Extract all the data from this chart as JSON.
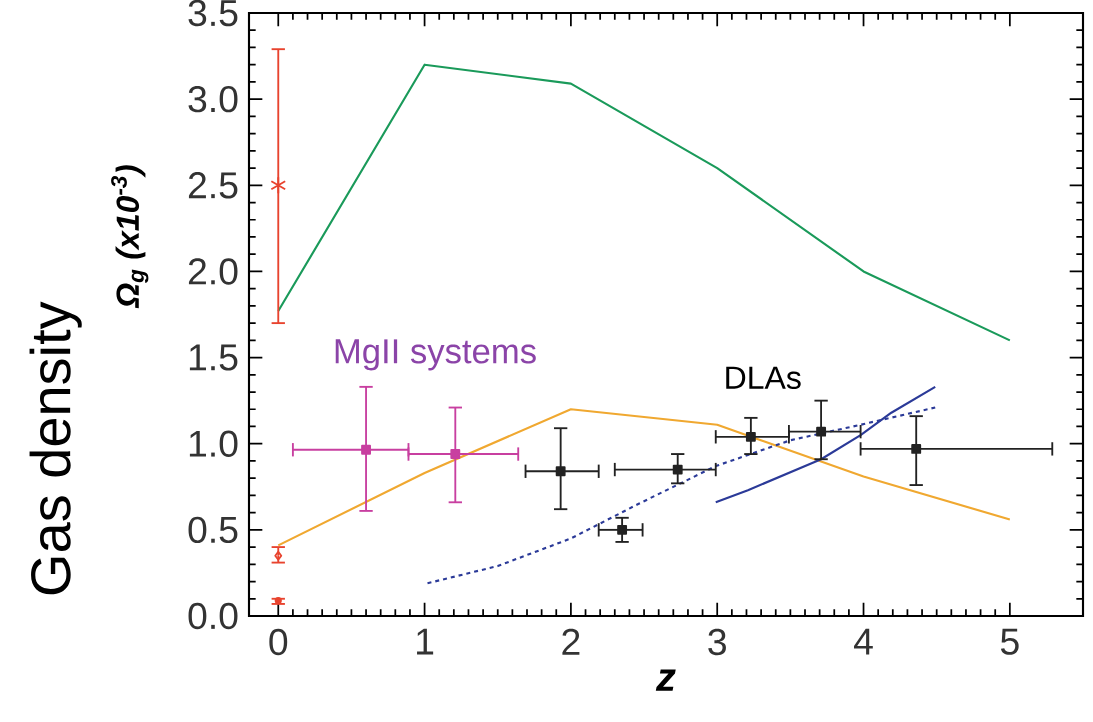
{
  "chart_data": {
    "type": "line",
    "xlabel": "z",
    "ylabel": "Ω$_{g}$ (x10$^{-3}$)",
    "annotations": [
      "Gas density",
      "MgII systems",
      "DLAs"
    ],
    "xlim": [
      -0.2,
      5.5
    ],
    "ylim": [
      0,
      3.5
    ],
    "xticks": [
      0,
      1,
      2,
      3,
      4,
      5
    ],
    "yticks": [
      {
        "value": 0,
        "label": "0.0"
      },
      {
        "value": 0.5,
        "label": "0.5"
      },
      {
        "value": 1,
        "label": "1.0"
      },
      {
        "value": 1.5,
        "label": "1.5"
      },
      {
        "value": 2,
        "label": "2.0"
      },
      {
        "value": 2.5,
        "label": "2.5"
      },
      {
        "value": 3,
        "label": "3.0"
      },
      {
        "value": 3.5,
        "label": "3.5"
      }
    ],
    "grid": false,
    "series": [
      {
        "color": "#1a9a5a",
        "x": [
          0,
          1,
          2,
          3,
          4,
          5
        ],
        "values": [
          1.77,
          3.2,
          3.09,
          2.6,
          2.0,
          1.6
        ],
        "marker": "none",
        "line_style": "solid"
      },
      {
        "color": "#f0a830",
        "x": [
          0,
          1,
          2,
          3,
          4,
          5
        ],
        "values": [
          0.41,
          0.83,
          1.2,
          1.11,
          0.81,
          0.56
        ],
        "marker": "none",
        "line_style": "solid"
      },
      {
        "color": "#2b3a98",
        "x": [
          1.02,
          1.5,
          2,
          2.46,
          2.99,
          3.5,
          3.98,
          4.49
        ],
        "values": [
          0.19,
          0.29,
          0.45,
          0.65,
          0.87,
          1.02,
          1.11,
          1.21
        ],
        "marker": "none",
        "line_style": "dashed"
      },
      {
        "color": "#2b3a98",
        "x": [
          2.99,
          3.21,
          3.71,
          3.98,
          4.19,
          4.49
        ],
        "values": [
          0.66,
          0.73,
          0.91,
          1.05,
          1.18,
          1.33
        ],
        "marker": "none",
        "line_style": "solid"
      },
      {
        "type": "scatter",
        "color": "#e8432e",
        "x": [
          0
        ],
        "values": [
          2.5
        ],
        "errors": [
          [
            1.7,
            3.29
          ]
        ],
        "marker": "cross"
      },
      {
        "type": "scatter",
        "color": "#e8432e",
        "x": [
          0
        ],
        "values": [
          0.35
        ],
        "errors": [
          [
            0.31,
            0.4
          ]
        ],
        "marker": "diamond"
      },
      {
        "type": "scatter",
        "color": "#e8432e",
        "x": [
          0
        ],
        "values": [
          0.09
        ],
        "errors": [
          [
            0.07,
            0.1
          ]
        ],
        "marker": "circle"
      },
      {
        "type": "scatter",
        "color": "#c83fa0",
        "x": [
          0.6,
          1.21
        ],
        "values": [
          0.965,
          0.94
        ],
        "xerrors": [
          [
            0.1,
            0.89
          ],
          [
            0.89,
            1.64
          ]
        ],
        "errors": [
          [
            0.61,
            1.33
          ],
          [
            0.66,
            1.21
          ]
        ],
        "marker": "square"
      },
      {
        "type": "scatter",
        "color": "#222222",
        "x": [
          1.93,
          2.35,
          2.73,
          3.23,
          3.71,
          4.36
        ],
        "values": [
          0.84,
          0.5,
          0.85,
          1.04,
          1.07,
          0.97
        ],
        "xerrors": [
          [
            1.69,
            2.19
          ],
          [
            2.19,
            2.49
          ],
          [
            2.3,
            2.99
          ],
          [
            2.99,
            3.49
          ],
          [
            3.49,
            3.98
          ],
          [
            3.98,
            5.29
          ]
        ],
        "errors": [
          [
            0.62,
            1.09
          ],
          [
            0.43,
            0.57
          ],
          [
            0.77,
            0.94
          ],
          [
            0.94,
            1.15
          ],
          [
            0.91,
            1.25
          ],
          [
            0.76,
            1.16
          ]
        ],
        "marker": "square"
      }
    ]
  }
}
